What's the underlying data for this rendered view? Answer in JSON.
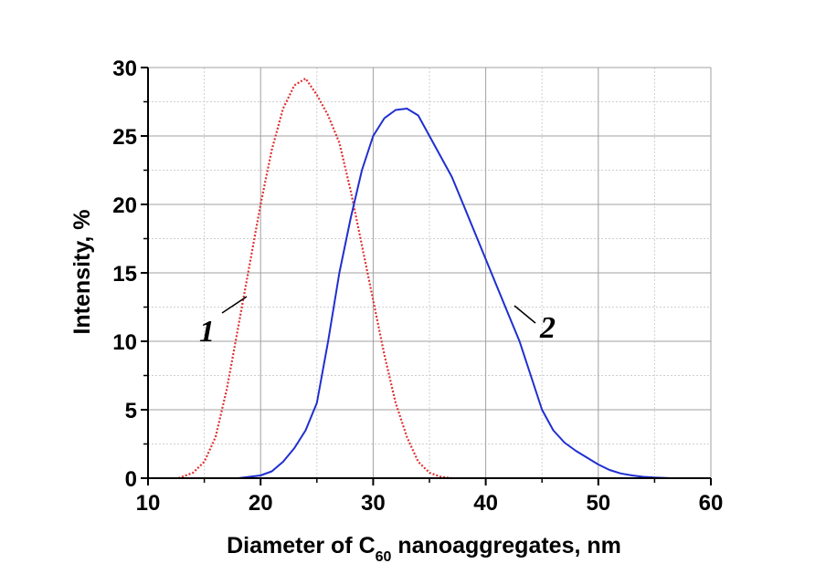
{
  "chart_data": {
    "type": "line",
    "xlabel": {
      "prefix": "Diameter of C",
      "subscript": "60",
      "suffix": " nanoaggregates, nm"
    },
    "ylabel": "Intensity, %",
    "xlim": [
      10,
      60
    ],
    "ylim": [
      0,
      30
    ],
    "x_ticks": [
      10,
      20,
      30,
      40,
      50,
      60
    ],
    "y_ticks": [
      0,
      5,
      10,
      15,
      20,
      25,
      30
    ],
    "grid": true,
    "series": [
      {
        "name": "1",
        "color": "#e03030",
        "style": "dotted",
        "x": [
          12.7,
          14,
          15,
          16,
          17,
          18,
          19,
          20,
          21,
          22,
          23,
          24,
          25,
          26,
          27,
          28,
          29,
          30,
          31,
          32,
          33,
          34,
          35,
          36,
          37
        ],
        "y": [
          0,
          0.4,
          1.2,
          3,
          6.5,
          11,
          15.5,
          20,
          24,
          27,
          28.7,
          29.2,
          28,
          26.5,
          24.5,
          21,
          17,
          13,
          9,
          5.5,
          3,
          1.2,
          0.4,
          0.1,
          0
        ]
      },
      {
        "name": "2",
        "color": "#1f2fd0",
        "style": "solid",
        "x": [
          18,
          20,
          21,
          22,
          23,
          24,
          25,
          26,
          27,
          28,
          29,
          30,
          31,
          32,
          33,
          34,
          35,
          36,
          37,
          38,
          39,
          40,
          41,
          42,
          43,
          44,
          45,
          46,
          47,
          48,
          49,
          50,
          51,
          52,
          53,
          54,
          55,
          56,
          56.5
        ],
        "y": [
          0,
          0.2,
          0.5,
          1.2,
          2.2,
          3.5,
          5.5,
          10,
          15,
          19,
          22.5,
          25,
          26.3,
          26.9,
          27,
          26.5,
          25,
          23.5,
          22,
          20,
          18,
          16,
          14,
          12,
          10,
          7.5,
          5,
          3.5,
          2.6,
          2,
          1.5,
          1,
          0.6,
          0.35,
          0.2,
          0.1,
          0.05,
          0.02,
          0
        ]
      }
    ],
    "annotations": [
      {
        "text": "1",
        "series": "1",
        "position": "left of curve 1"
      },
      {
        "text": "2",
        "series": "2",
        "position": "right of curve 2"
      }
    ]
  }
}
